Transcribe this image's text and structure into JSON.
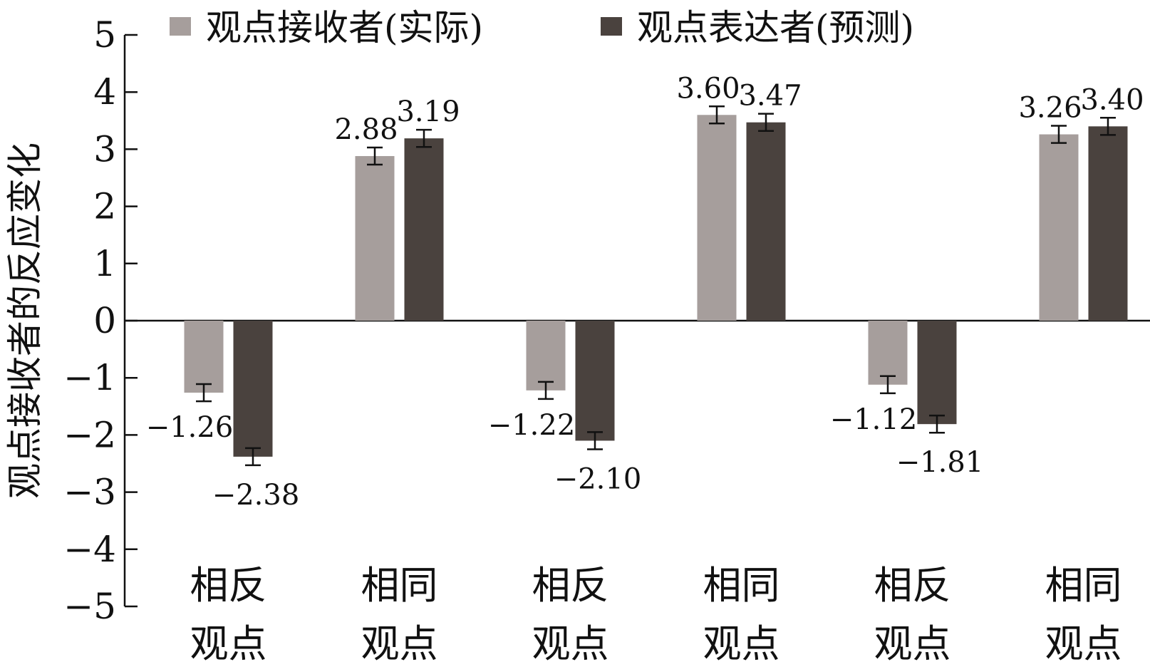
{
  "chart_data": {
    "type": "bar",
    "ylabel": "观点接收者的反应变化",
    "xlabel": "",
    "ylim": [
      -5,
      5
    ],
    "yticks": [
      5,
      4,
      3,
      2,
      1,
      0,
      -1,
      -2,
      -3,
      -4,
      -5
    ],
    "ytick_labels": [
      "5",
      "4",
      "3",
      "2",
      "1",
      "0",
      "−1",
      "−2",
      "−3",
      "−4",
      "−5"
    ],
    "categories": [
      [
        "相反",
        "观点"
      ],
      [
        "相同",
        "观点"
      ],
      [
        "相反",
        "观点"
      ],
      [
        "相同",
        "观点"
      ],
      [
        "相反",
        "观点"
      ],
      [
        "相同",
        "观点"
      ]
    ],
    "legend": {
      "position": "top"
    },
    "series": [
      {
        "name": "观点接收者(实际)",
        "color": "#a69e9c",
        "values": [
          -1.26,
          2.88,
          -1.22,
          3.6,
          -1.12,
          3.26
        ],
        "labels": [
          "−1.26",
          "2.88",
          "−1.22",
          "3.60",
          "−1.12",
          "3.26"
        ],
        "error": [
          0.15,
          0.15,
          0.15,
          0.15,
          0.15,
          0.15
        ]
      },
      {
        "name": "观点表达者(预测)",
        "color": "#4a423e",
        "values": [
          -2.38,
          3.19,
          -2.1,
          3.47,
          -1.81,
          3.4
        ],
        "labels": [
          "−2.38",
          "3.19",
          "−2.10",
          "3.47",
          "−1.81",
          "3.40"
        ],
        "error": [
          0.15,
          0.15,
          0.15,
          0.15,
          0.15,
          0.15
        ]
      }
    ],
    "grid": false
  }
}
